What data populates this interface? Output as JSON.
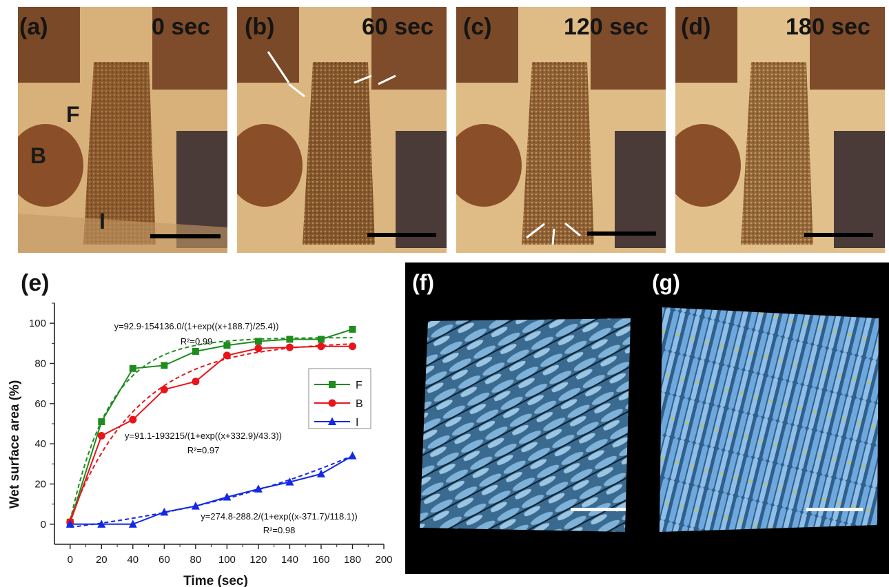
{
  "photos": [
    {
      "label": "(a)",
      "time": "0 sec",
      "markers": [
        "F",
        "B",
        "I"
      ]
    },
    {
      "label": "(b)",
      "time": "60 sec"
    },
    {
      "label": "(c)",
      "time": "120 sec"
    },
    {
      "label": "(d)",
      "time": "180 sec"
    }
  ],
  "panel_e_label": "(e)",
  "panel_f_label": "(f)",
  "panel_g_label": "(g)",
  "colors": {
    "F": "#1e8c1e",
    "B": "#e8141a",
    "I": "#1428e6"
  },
  "chart_data": {
    "type": "line",
    "xlabel": "Time (sec)",
    "ylabel": "Wet surface area (%)",
    "xlim": [
      -10,
      200
    ],
    "ylim": [
      -10,
      110
    ],
    "xticks": [
      0,
      20,
      40,
      60,
      80,
      100,
      120,
      140,
      160,
      180,
      200
    ],
    "yticks": [
      0,
      20,
      40,
      60,
      80,
      100
    ],
    "x": [
      0,
      20,
      40,
      60,
      80,
      100,
      120,
      140,
      160,
      180
    ],
    "legend_position": "right",
    "series": [
      {
        "name": "F",
        "marker": "square",
        "color": "#1e8c1e",
        "values": [
          1,
          51,
          77.5,
          79,
          86,
          89,
          91,
          92,
          92,
          97
        ],
        "fit": {
          "a": 92.9,
          "b": 154136.0,
          "c": 188.7,
          "d": 25.4
        },
        "equation": "y=92.9-154136.0/(1+exp((x+188.7)/25.4))",
        "r2": "R²=0.99"
      },
      {
        "name": "B",
        "marker": "circle",
        "color": "#e8141a",
        "values": [
          1,
          44,
          52,
          67,
          71,
          84,
          87.5,
          88,
          88.5,
          88.5
        ],
        "fit": {
          "a": 91.1,
          "b": 193215,
          "c": 332.9,
          "d": 43.3
        },
        "equation": "y=91.1-193215/(1+exp((x+332.9)/43.3))",
        "r2": "R²=0.97"
      },
      {
        "name": "I",
        "marker": "triangle",
        "color": "#1428e6",
        "values": [
          0,
          0,
          0,
          6,
          9,
          13.5,
          17.5,
          21,
          25,
          34
        ],
        "fit": {
          "a": 274.8,
          "b": 288.2,
          "c": -371.7,
          "d": 118.1
        },
        "equation": "y=274.8-288.2/(1+exp((x-371.7)/118.1))",
        "r2": "R²=0.98"
      }
    ]
  }
}
